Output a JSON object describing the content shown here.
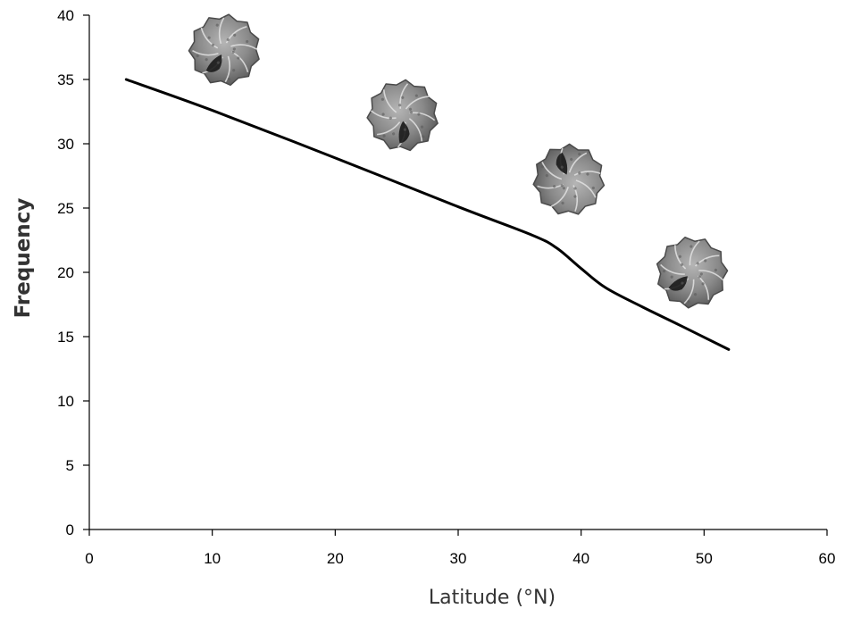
{
  "chart_data": {
    "type": "line",
    "title": "",
    "xlabel": "Latitude (°N)",
    "ylabel": "Frequency",
    "xlim": [
      0,
      60
    ],
    "ylim": [
      0,
      40
    ],
    "x_ticks": [
      0,
      10,
      20,
      30,
      40,
      50,
      60
    ],
    "y_ticks": [
      0,
      5,
      10,
      15,
      20,
      25,
      30,
      35,
      40
    ],
    "grid": false,
    "legend": "none",
    "series": [
      {
        "color": "#000000",
        "x": [
          3,
          10,
          20,
          30,
          36,
          38,
          40,
          42,
          45,
          48,
          52
        ],
        "y": [
          35,
          32.6,
          28.9,
          25.1,
          22.9,
          21.9,
          20.3,
          18.8,
          17.3,
          15.9,
          14
        ]
      }
    ],
    "annotations": [
      {
        "icon": "foraminifera-shell-icon",
        "x": 11,
        "y": 37.3
      },
      {
        "icon": "foraminifera-shell-icon",
        "x": 25.5,
        "y": 32.2
      },
      {
        "icon": "foraminifera-shell-icon",
        "x": 39,
        "y": 27.2
      },
      {
        "icon": "foraminifera-shell-icon",
        "x": 49,
        "y": 20
      }
    ]
  }
}
